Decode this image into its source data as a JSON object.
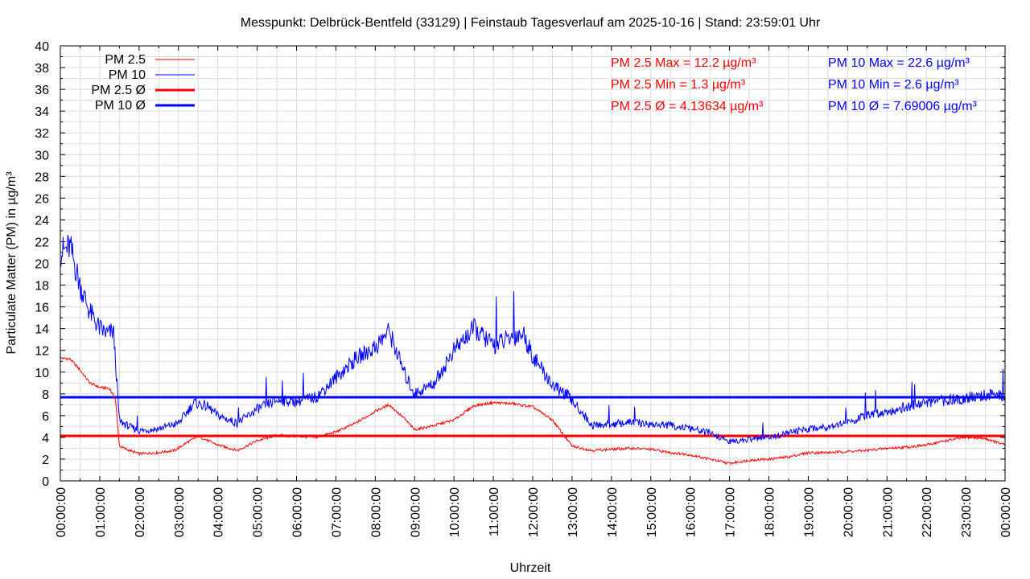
{
  "chart_data": {
    "type": "line",
    "title": "Messpunkt: Delbrück-Bentfeld (33129) | Feinstaub Tagesverlauf am 2025-10-16 | Stand: 23:59:01 Uhr",
    "xlabel": "Uhrzeit",
    "ylabel": "Particulate Matter (PM) in µg/m³",
    "ylim": [
      0,
      40
    ],
    "xlim": [
      "00:00:00",
      "24:00:00"
    ],
    "grid": true,
    "legend_position": "top-left",
    "yticks": [
      "0",
      "2",
      "4",
      "6",
      "8",
      "10",
      "12",
      "14",
      "16",
      "18",
      "20",
      "22",
      "24",
      "26",
      "28",
      "30",
      "32",
      "34",
      "36",
      "38",
      "40"
    ],
    "xticks": [
      "00:00:00",
      "01:00:00",
      "02:00:00",
      "03:00:00",
      "04:00:00",
      "05:00:00",
      "06:00:00",
      "07:00:00",
      "08:00:00",
      "09:00:00",
      "10:00:00",
      "11:00:00",
      "12:00:00",
      "13:00:00",
      "14:00:00",
      "15:00:00",
      "16:00:00",
      "17:00:00",
      "18:00:00",
      "19:00:00",
      "20:00:00",
      "21:00:00",
      "22:00:00",
      "23:00:00",
      "00:00:00"
    ],
    "series": [
      {
        "name": "PM 2.5",
        "color": "#ff0000",
        "x_hours": [
          0,
          0.25,
          0.5,
          0.75,
          1.0,
          1.25,
          1.4,
          1.5,
          1.75,
          2.0,
          2.5,
          2.9,
          3.25,
          3.5,
          4.0,
          4.5,
          5.0,
          5.5,
          6.0,
          6.5,
          7.0,
          7.5,
          8.0,
          8.35,
          8.75,
          9.0,
          9.5,
          10.0,
          10.5,
          11.0,
          11.5,
          12.0,
          12.5,
          13.0,
          13.5,
          14.0,
          14.5,
          15.0,
          15.5,
          16.0,
          16.5,
          17.0,
          17.5,
          18.0,
          18.5,
          19.0,
          19.5,
          20.0,
          20.5,
          21.0,
          21.5,
          22.0,
          22.5,
          23.0,
          23.5,
          24.0
        ],
        "values": [
          11.3,
          11.2,
          10.2,
          9.0,
          8.6,
          8.5,
          7.5,
          3.2,
          2.8,
          2.5,
          2.6,
          2.8,
          3.6,
          4.1,
          3.3,
          2.8,
          3.7,
          4.2,
          4.1,
          4.0,
          4.5,
          5.3,
          6.4,
          7.0,
          5.7,
          4.7,
          5.1,
          5.6,
          6.9,
          7.2,
          7.1,
          6.8,
          5.6,
          3.2,
          2.8,
          2.9,
          3.0,
          2.9,
          2.6,
          2.4,
          2.0,
          1.6,
          1.9,
          2.0,
          2.2,
          2.6,
          2.6,
          2.7,
          2.8,
          3.0,
          3.1,
          3.3,
          3.7,
          4.0,
          3.9,
          3.3
        ]
      },
      {
        "name": "PM 10",
        "color": "#0000ff",
        "x_hours": [
          0,
          0.25,
          0.5,
          0.75,
          1.0,
          1.2,
          1.35,
          1.5,
          1.75,
          2.0,
          2.5,
          3.0,
          3.4,
          3.75,
          4.0,
          4.5,
          5.0,
          5.5,
          6.0,
          6.5,
          7.0,
          7.5,
          8.0,
          8.35,
          8.75,
          9.0,
          9.5,
          10.0,
          10.5,
          11.0,
          11.5,
          11.75,
          12.0,
          12.5,
          12.9,
          13.25,
          13.5,
          14.0,
          14.5,
          15.0,
          15.5,
          16.0,
          16.5,
          17.0,
          17.5,
          18.0,
          18.5,
          19.0,
          19.5,
          20.0,
          20.5,
          21.0,
          21.5,
          22.0,
          22.5,
          23.0,
          23.5,
          24.0
        ],
        "values": [
          21.0,
          21.5,
          18.0,
          15.5,
          14.0,
          13.5,
          13.8,
          5.5,
          5.0,
          4.6,
          4.8,
          5.3,
          7.2,
          6.8,
          6.0,
          5.3,
          6.6,
          7.4,
          7.3,
          7.7,
          9.5,
          11.2,
          12.3,
          13.8,
          9.8,
          8.0,
          9.0,
          12.0,
          14.0,
          12.5,
          13.2,
          13.6,
          11.5,
          8.8,
          7.8,
          6.3,
          5.1,
          5.2,
          5.4,
          5.2,
          5.1,
          4.8,
          4.4,
          3.6,
          3.8,
          4.0,
          4.4,
          4.8,
          5.0,
          5.4,
          6.0,
          6.4,
          6.8,
          7.2,
          7.4,
          7.6,
          7.9,
          7.8
        ]
      },
      {
        "name": "PM 2.5 Ø",
        "color": "#ff0000",
        "constant": 4.13634
      },
      {
        "name": "PM 10 Ø",
        "color": "#0000ff",
        "constant": 7.69006
      }
    ],
    "annotations": {
      "pm25": [
        "PM 2.5 Max = 12.2 µg/m³",
        "PM 2.5 Min = 1.3 µg/m³",
        "PM 2.5 Ø = 4.13634 µg/m³"
      ],
      "pm10": [
        "PM 10 Max = 22.6 µg/m³",
        "PM 10 Min = 2.6 µg/m³",
        "PM 10 Ø = 7.69006 µg/m³"
      ]
    }
  }
}
